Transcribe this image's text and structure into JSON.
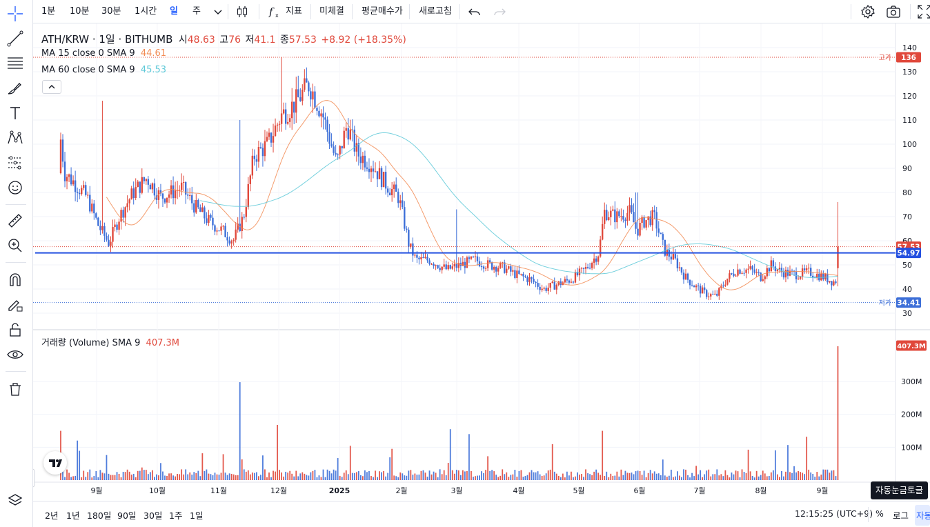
{
  "toolbar": {
    "intervals": [
      "1분",
      "10분",
      "30분",
      "1시간",
      "일",
      "주"
    ],
    "active_interval": "일",
    "indicators_label": "지표",
    "unfilled_label": "미체결",
    "avg_price_label": "평균매수가",
    "refresh_label": "새로고침"
  },
  "legend": {
    "symbol": "ATH/KRW · 1일 · BITHUMB",
    "open_label": "시",
    "open": "48.63",
    "high_label": "고",
    "high": "76",
    "low_label": "저",
    "low": "41.1",
    "close_label": "종",
    "close": "57.53",
    "change": "+8.92 (+18.35%)",
    "ma15_label": "MA 15 close 0 SMA 9",
    "ma15_value": "44.61",
    "ma60_label": "MA 60 close 0 SMA 9",
    "ma60_value": "45.53",
    "volume_label": "거래량 (Volume) SMA 9",
    "volume_value": "407.3M"
  },
  "price_axis": {
    "ticks": [
      "140",
      "130",
      "120",
      "110",
      "100",
      "90",
      "80",
      "70",
      "60",
      "50",
      "40",
      "30"
    ],
    "high_tag_label": "고가",
    "high_tag_value": "136",
    "low_tag_label": "저가",
    "low_tag_value": "34.41",
    "last_value": "57.53",
    "line_value": "54.97"
  },
  "volume_axis": {
    "ticks": [
      "300M",
      "200M",
      "100M"
    ],
    "last_value": "407.3M"
  },
  "time_axis": {
    "labels": [
      "9월",
      "10월",
      "11월",
      "12월",
      "2025",
      "2월",
      "3월",
      "4월",
      "5월",
      "6월",
      "7월",
      "8월",
      "9월"
    ]
  },
  "bottom": {
    "ranges": [
      "2년",
      "1년",
      "180일",
      "90일",
      "30일",
      "1주",
      "1일"
    ],
    "clock": "12:15:25 (UTC+9)",
    "percent_label": "%",
    "log_label": "로그",
    "auto_label": "자동"
  },
  "tooltip": "자동눈금토글",
  "colors": {
    "up": "#e0483b",
    "down": "#3d6fd8",
    "ma15": "#f28b54",
    "ma60": "#5ec9d8",
    "hline": "#2450e0",
    "accent": "#2962ff"
  },
  "chart_data": {
    "type": "candlestick",
    "x_range": [
      "2024-08",
      "2025-09"
    ],
    "ylim": [
      30,
      140
    ],
    "high": 136,
    "low": 34.41,
    "last_close": 57.53,
    "horizontal_line": 54.97,
    "approx_closes": [
      {
        "month": "2024-08",
        "close": 88
      },
      {
        "month": "2024-09",
        "close": 62
      },
      {
        "month": "2024-10",
        "close": 85
      },
      {
        "month": "2024-11",
        "close": 66
      },
      {
        "month": "2024-12",
        "close": 118
      },
      {
        "month": "2025-01",
        "close": 98
      },
      {
        "month": "2025-02",
        "close": 53
      },
      {
        "month": "2025-03",
        "close": 50
      },
      {
        "month": "2025-04",
        "close": 41
      },
      {
        "month": "2025-05",
        "close": 70
      },
      {
        "month": "2025-06",
        "close": 70
      },
      {
        "month": "2025-07",
        "close": 37
      },
      {
        "month": "2025-08",
        "close": 47
      },
      {
        "month": "2025-09",
        "close": 57.53
      }
    ],
    "volume_max": "407.3M"
  }
}
